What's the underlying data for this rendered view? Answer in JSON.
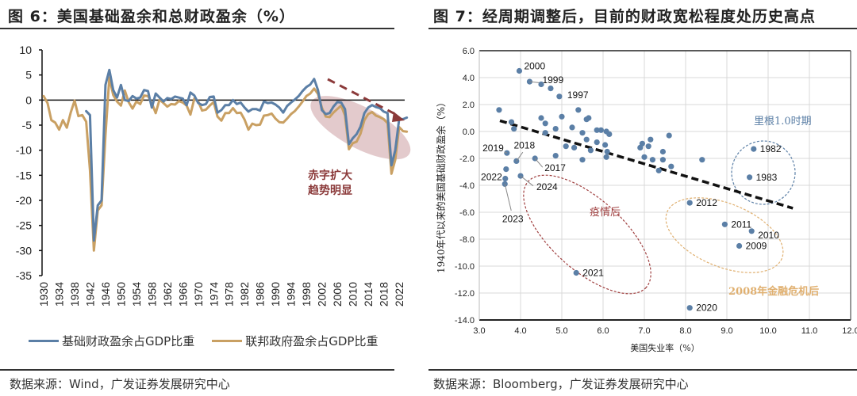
{
  "left": {
    "title": "图 6：美国基础盈余和总财政盈余（%）",
    "source": "数据来源：Wind，广发证券发展研究中心",
    "annotation_line1": "赤字扩大",
    "annotation_line2": "趋势明显",
    "colors": {
      "primary": "#5b7fa6",
      "federal": "#c9a063",
      "annotation": "#8b3a3a",
      "ellipse": "#d9b8bb"
    }
  },
  "right": {
    "title": "图 7：经周期调整后，目前的财政宽松程度处历史高点",
    "source": "数据来源：Bloomberg，广发证券发展研究中心",
    "ann_reagan": "里根1.0时期",
    "ann_covid": "疫情后",
    "ann_gfc": "2008年金融危机后",
    "colors": {
      "point": "#5b7fa6",
      "reagan": "#5b7fa6",
      "covid": "#a04040",
      "gfc": "#e0b070"
    }
  },
  "chart_data": [
    {
      "type": "line",
      "title": "美国基础盈余和总财政盈余（%）",
      "xlabel": "",
      "ylabel": "",
      "ylim": [
        -35,
        10
      ],
      "yticks": [
        "10",
        "5",
        "0",
        "-5",
        "-10",
        "-15",
        "-20",
        "-25",
        "-30",
        "-35"
      ],
      "xticks": [
        "1930",
        "1934",
        "1938",
        "1942",
        "1946",
        "1950",
        "1954",
        "1958",
        "1962",
        "1966",
        "1970",
        "1974",
        "1978",
        "1982",
        "1986",
        "1990",
        "1994",
        "1998",
        "2002",
        "2006",
        "2010",
        "2014",
        "2018",
        "2022"
      ],
      "legend_position": "bottom",
      "series": [
        {
          "name": "基础财政盈余占GDP比重",
          "x": [
            1941,
            1942,
            1943,
            1944,
            1945,
            1946,
            1947,
            1948,
            1949,
            1950,
            1951,
            1952,
            1953,
            1954,
            1955,
            1956,
            1957,
            1958,
            1959,
            1960,
            1961,
            1962,
            1963,
            1964,
            1965,
            1966,
            1967,
            1968,
            1969,
            1970,
            1971,
            1972,
            1973,
            1974,
            1975,
            1976,
            1977,
            1978,
            1979,
            1980,
            1981,
            1982,
            1983,
            1984,
            1985,
            1986,
            1987,
            1988,
            1989,
            1990,
            1991,
            1992,
            1993,
            1994,
            1995,
            1996,
            1997,
            1998,
            1999,
            2000,
            2001,
            2002,
            2003,
            2004,
            2005,
            2006,
            2007,
            2008,
            2009,
            2010,
            2011,
            2012,
            2013,
            2014,
            2015,
            2016,
            2017,
            2018,
            2019,
            2020,
            2021,
            2022,
            2023,
            2024
          ],
          "values": [
            -2.2,
            -3.0,
            -28,
            -21,
            -20,
            3,
            6,
            2,
            0.5,
            3,
            0,
            -0.2,
            0.8,
            0.3,
            0.5,
            2,
            1.8,
            -1.5,
            1.3,
            0.5,
            -0.3,
            0.4,
            0.2,
            0.7,
            0.5,
            0.3,
            -1,
            1.5,
            0.9,
            -0.6,
            -1,
            -0.8,
            0.6,
            0.7,
            -2.5,
            -2,
            -1,
            -1,
            0,
            -0.8,
            -0.5,
            -1.5,
            -2.3,
            -1.8,
            -1.8,
            -2.1,
            -0.3,
            -0.6,
            -0.5,
            -0.9,
            -1.5,
            -2.5,
            -1.2,
            -0.5,
            0.1,
            0.8,
            1.8,
            2.6,
            3.1,
            4.2,
            2.0,
            -2.0,
            -2.8,
            -2.6,
            -1.3,
            -0.4,
            -0.5,
            -1.8,
            -8.8,
            -7.6,
            -6.8,
            -5.3,
            -2.6,
            -1.5,
            -1.0,
            -1.4,
            -1.6,
            -2.3,
            -2.6,
            -13,
            -10,
            -3.8,
            -3.8,
            -3.5
          ]
        },
        {
          "name": "联邦政府盈余占GDP比重",
          "x": [
            1930,
            1931,
            1932,
            1933,
            1934,
            1935,
            1936,
            1937,
            1938,
            1939,
            1940,
            1941,
            1942,
            1943,
            1944,
            1945,
            1946,
            1947,
            1948,
            1949,
            1950,
            1951,
            1952,
            1953,
            1954,
            1955,
            1956,
            1957,
            1958,
            1959,
            1960,
            1961,
            1962,
            1963,
            1964,
            1965,
            1966,
            1967,
            1968,
            1969,
            1970,
            1971,
            1972,
            1973,
            1974,
            1975,
            1976,
            1977,
            1978,
            1979,
            1980,
            1981,
            1982,
            1983,
            1984,
            1985,
            1986,
            1987,
            1988,
            1989,
            1990,
            1991,
            1992,
            1993,
            1994,
            1995,
            1996,
            1997,
            1998,
            1999,
            2000,
            2001,
            2002,
            2003,
            2004,
            2005,
            2006,
            2007,
            2008,
            2009,
            2010,
            2011,
            2012,
            2013,
            2014,
            2015,
            2016,
            2017,
            2018,
            2019,
            2020,
            2021,
            2022,
            2023,
            2024
          ],
          "values": [
            0.8,
            -0.6,
            -4.0,
            -4.5,
            -5.9,
            -4.0,
            -5.5,
            -2.5,
            -0.1,
            -3.2,
            -3.0,
            -4.3,
            -14,
            -30,
            -22,
            -21,
            -7,
            4.5,
            1.0,
            -0.3,
            -1.1,
            1.9,
            -0.4,
            -1.7,
            -0.3,
            -0.8,
            0.9,
            0.8,
            -0.6,
            -2.6,
            0.1,
            -0.6,
            -1.3,
            -0.8,
            -0.9,
            -0.2,
            -0.5,
            -1.1,
            -2.9,
            0.3,
            -0.3,
            -2.1,
            -1.9,
            -1.1,
            -0.4,
            -3.3,
            -4.1,
            -2.6,
            -2.6,
            -1.6,
            -2.6,
            -2.5,
            -3.9,
            -5.9,
            -4.7,
            -5.0,
            -4.9,
            -3.1,
            -3.0,
            -2.7,
            -3.7,
            -4.4,
            -4.5,
            -3.7,
            -2.8,
            -2.2,
            -1.3,
            -0.3,
            0.8,
            1.3,
            2.3,
            1.2,
            -1.5,
            -3.3,
            -3.4,
            -2.5,
            -1.8,
            -1.1,
            -3.1,
            -9.8,
            -8.6,
            -8.3,
            -6.7,
            -4.0,
            -2.8,
            -2.4,
            -3.1,
            -3.4,
            -3.8,
            -4.6,
            -14.7,
            -11.9,
            -5.4,
            -6.2,
            -6.3
          ]
        }
      ],
      "annotations": [
        "赤字扩大趋势明显"
      ]
    },
    {
      "type": "scatter",
      "title": "经周期调整后，目前的财政宽松程度处历史高点",
      "xlabel": "美国失业率（%）",
      "ylabel": "1940年代以来的美国基础财政盈余（%）",
      "xlim": [
        3.0,
        12.0
      ],
      "ylim": [
        -14.0,
        6.0
      ],
      "xticks": [
        "3.0",
        "4.0",
        "5.0",
        "6.0",
        "7.0",
        "8.0",
        "9.0",
        "10.0",
        "11.0",
        "12.0"
      ],
      "yticks": [
        "6.0",
        "4.0",
        "2.0",
        "0.0",
        "-2.0",
        "-4.0",
        "-6.0",
        "-8.0",
        "-10.0",
        "-12.0",
        "-14.0"
      ],
      "grid": true,
      "trendline": {
        "x": [
          3.5,
          10.6
        ],
        "y": [
          0.8,
          -5.7
        ],
        "style": "dashed"
      },
      "points": [
        {
          "x": 3.97,
          "y": 4.5,
          "label": "2000"
        },
        {
          "x": 4.22,
          "y": 3.7,
          "label": "1999"
        },
        {
          "x": 4.5,
          "y": 3.5,
          "label": ""
        },
        {
          "x": 4.73,
          "y": 3.2,
          "label": ""
        },
        {
          "x": 4.94,
          "y": 2.6,
          "label": "1997"
        },
        {
          "x": 3.48,
          "y": 1.6,
          "label": ""
        },
        {
          "x": 5.4,
          "y": 1.6,
          "label": ""
        },
        {
          "x": 3.78,
          "y": 0.7,
          "label": ""
        },
        {
          "x": 3.84,
          "y": 0.2,
          "label": ""
        },
        {
          "x": 4.5,
          "y": 1.0,
          "label": ""
        },
        {
          "x": 4.6,
          "y": 0.6,
          "label": ""
        },
        {
          "x": 5.0,
          "y": 1.1,
          "label": ""
        },
        {
          "x": 4.6,
          "y": -0.1,
          "label": ""
        },
        {
          "x": 4.85,
          "y": 0.2,
          "label": ""
        },
        {
          "x": 5.25,
          "y": 0.3,
          "label": ""
        },
        {
          "x": 5.6,
          "y": 0.9,
          "label": ""
        },
        {
          "x": 5.65,
          "y": 1.0,
          "label": ""
        },
        {
          "x": 5.5,
          "y": -0.1,
          "label": ""
        },
        {
          "x": 5.6,
          "y": -0.6,
          "label": ""
        },
        {
          "x": 5.85,
          "y": 0.1,
          "label": ""
        },
        {
          "x": 5.95,
          "y": 0.1,
          "label": ""
        },
        {
          "x": 6.08,
          "y": 0.0,
          "label": ""
        },
        {
          "x": 6.15,
          "y": -0.2,
          "label": ""
        },
        {
          "x": 5.1,
          "y": -1.1,
          "label": ""
        },
        {
          "x": 5.3,
          "y": -1.2,
          "label": ""
        },
        {
          "x": 5.7,
          "y": -1.4,
          "label": ""
        },
        {
          "x": 5.85,
          "y": -0.8,
          "label": ""
        },
        {
          "x": 6.05,
          "y": -1.0,
          "label": ""
        },
        {
          "x": 6.08,
          "y": -1.9,
          "label": ""
        },
        {
          "x": 5.5,
          "y": -2.1,
          "label": ""
        },
        {
          "x": 4.85,
          "y": -1.8,
          "label": ""
        },
        {
          "x": 6.1,
          "y": -1.5,
          "label": ""
        },
        {
          "x": 6.9,
          "y": -1.2,
          "label": ""
        },
        {
          "x": 6.95,
          "y": -0.9,
          "label": ""
        },
        {
          "x": 7.1,
          "y": -1.1,
          "label": ""
        },
        {
          "x": 7.15,
          "y": -0.6,
          "label": ""
        },
        {
          "x": 7.45,
          "y": -1.5,
          "label": ""
        },
        {
          "x": 7.6,
          "y": -0.3,
          "label": ""
        },
        {
          "x": 7.0,
          "y": -1.9,
          "label": ""
        },
        {
          "x": 7.2,
          "y": -2.1,
          "label": ""
        },
        {
          "x": 7.45,
          "y": -2.1,
          "label": ""
        },
        {
          "x": 7.35,
          "y": -2.9,
          "label": ""
        },
        {
          "x": 7.65,
          "y": -2.6,
          "label": ""
        },
        {
          "x": 8.4,
          "y": -2.1,
          "label": ""
        },
        {
          "x": 9.65,
          "y": -1.3,
          "label": "1982"
        },
        {
          "x": 9.55,
          "y": -3.4,
          "label": "1983"
        },
        {
          "x": 4.35,
          "y": -2.0,
          "label": "2017"
        },
        {
          "x": 3.9,
          "y": -2.2,
          "label": "2018"
        },
        {
          "x": 3.67,
          "y": -1.6,
          "label": "2019"
        },
        {
          "x": 3.65,
          "y": -2.8,
          "label": ""
        },
        {
          "x": 3.63,
          "y": -3.5,
          "label": "2022"
        },
        {
          "x": 3.62,
          "y": -3.9,
          "label": "2023"
        },
        {
          "x": 4.0,
          "y": -3.3,
          "label": "2024"
        },
        {
          "x": 5.35,
          "y": -10.5,
          "label": "2021"
        },
        {
          "x": 8.1,
          "y": -5.3,
          "label": "2012"
        },
        {
          "x": 8.95,
          "y": -6.9,
          "label": "2011"
        },
        {
          "x": 9.6,
          "y": -7.4,
          "label": "2010"
        },
        {
          "x": 9.3,
          "y": -8.5,
          "label": "2009"
        },
        {
          "x": 8.1,
          "y": -13.1,
          "label": "2020"
        }
      ],
      "annotations": [
        "里根1.0时期",
        "疫情后",
        "2008年金融危机后"
      ]
    }
  ]
}
